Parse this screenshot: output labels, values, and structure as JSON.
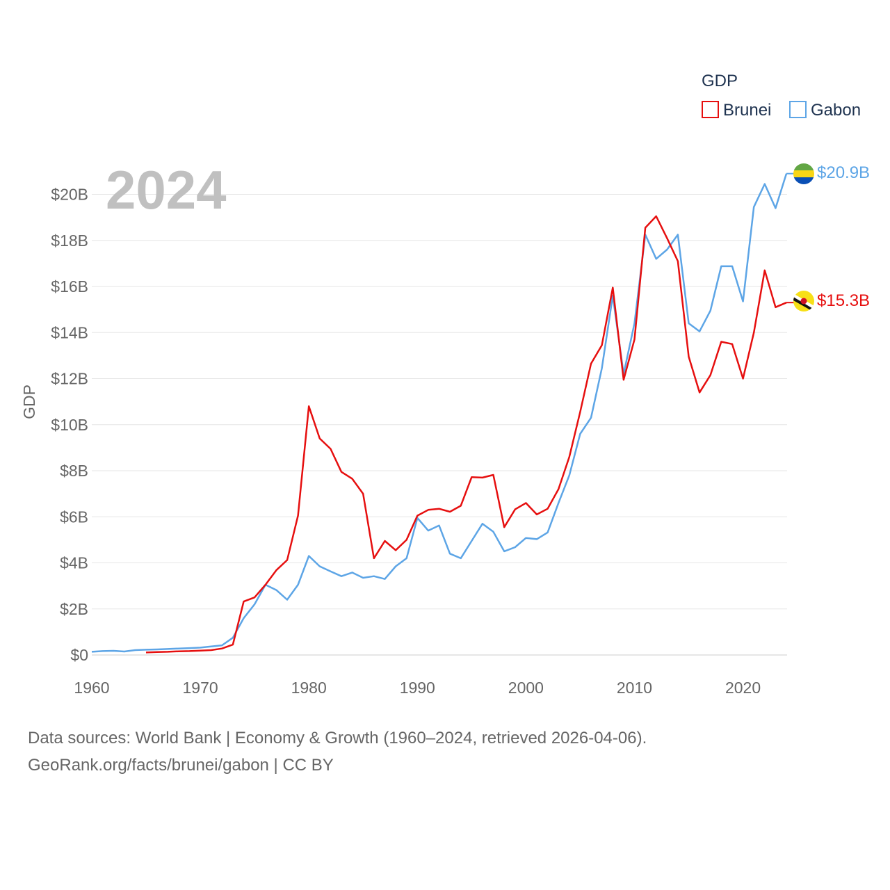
{
  "chart_data": {
    "type": "line",
    "ylabel": "GDP",
    "year_label": "2024",
    "legend_title": "GDP",
    "ylim": [
      0,
      21000000000
    ],
    "xlim": [
      1960,
      2024
    ],
    "y_ticks": [
      {
        "value": 0,
        "label": "$0"
      },
      {
        "value": 2000000000,
        "label": "$2B"
      },
      {
        "value": 4000000000,
        "label": "$4B"
      },
      {
        "value": 6000000000,
        "label": "$6B"
      },
      {
        "value": 8000000000,
        "label": "$8B"
      },
      {
        "value": 10000000000,
        "label": "$10B"
      },
      {
        "value": 12000000000,
        "label": "$12B"
      },
      {
        "value": 14000000000,
        "label": "$14B"
      },
      {
        "value": 16000000000,
        "label": "$16B"
      },
      {
        "value": 18000000000,
        "label": "$18B"
      },
      {
        "value": 20000000000,
        "label": "$20B"
      }
    ],
    "x_ticks": [
      1960,
      1970,
      1980,
      1990,
      2000,
      2010,
      2020
    ],
    "series": [
      {
        "name": "Brunei",
        "color": "#e60f0f",
        "end_label": "$15.3B",
        "flag": "brunei-flag-icon",
        "x": [
          1965,
          1966,
          1967,
          1968,
          1969,
          1970,
          1971,
          1972,
          1973,
          1974,
          1975,
          1976,
          1977,
          1978,
          1979,
          1980,
          1981,
          1982,
          1983,
          1984,
          1985,
          1986,
          1987,
          1988,
          1989,
          1990,
          1991,
          1992,
          1993,
          1994,
          1995,
          1996,
          1997,
          1998,
          1999,
          2000,
          2001,
          2002,
          2003,
          2004,
          2005,
          2006,
          2007,
          2008,
          2009,
          2010,
          2011,
          2012,
          2013,
          2014,
          2015,
          2016,
          2017,
          2018,
          2019,
          2020,
          2021,
          2022,
          2023,
          2024
        ],
        "values": [
          110000000.0,
          130000000.0,
          140000000.0,
          160000000.0,
          170000000.0,
          190000000.0,
          210000000.0,
          280000000.0,
          450000000.0,
          2320000000.0,
          2500000000.0,
          3050000000.0,
          3680000000.0,
          4120000000.0,
          6050000000.0,
          10800000000.0,
          9400000000.0,
          8950000000.0,
          7950000000.0,
          7650000000.0,
          7000000000.0,
          4200000000.0,
          4950000000.0,
          4550000000.0,
          5000000000.0,
          6050000000.0,
          6300000000.0,
          6350000000.0,
          6220000000.0,
          6480000000.0,
          7720000000.0,
          7700000000.0,
          7820000000.0,
          5550000000.0,
          6320000000.0,
          6600000000.0,
          6100000000.0,
          6350000000.0,
          7200000000.0,
          8600000000.0,
          10550000000.0,
          12650000000.0,
          13450000000.0,
          15950000000.0,
          11950000000.0,
          13700000000.0,
          18550000000.0,
          19050000000.0,
          18100000000.0,
          17100000000.0,
          12950000000.0,
          11400000000.0,
          12150000000.0,
          13600000000.0,
          13500000000.0,
          12000000000.0,
          14000000000.0,
          16700000000.0,
          15100000000.0,
          15300000000.0
        ]
      },
      {
        "name": "Gabon",
        "color": "#5da5e6",
        "end_label": "$20.9B",
        "flag": "gabon-flag-icon",
        "x": [
          1960,
          1961,
          1962,
          1963,
          1964,
          1965,
          1966,
          1967,
          1968,
          1969,
          1970,
          1971,
          1972,
          1973,
          1974,
          1975,
          1976,
          1977,
          1978,
          1979,
          1980,
          1981,
          1982,
          1983,
          1984,
          1985,
          1986,
          1987,
          1988,
          1989,
          1990,
          1991,
          1992,
          1993,
          1994,
          1995,
          1996,
          1997,
          1998,
          1999,
          2000,
          2001,
          2002,
          2003,
          2004,
          2005,
          2006,
          2007,
          2008,
          2009,
          2010,
          2011,
          2012,
          2013,
          2014,
          2015,
          2016,
          2017,
          2018,
          2019,
          2020,
          2021,
          2022,
          2023,
          2024
        ],
        "values": [
          140000000.0,
          170000000.0,
          180000000.0,
          150000000.0,
          210000000.0,
          230000000.0,
          240000000.0,
          260000000.0,
          280000000.0,
          300000000.0,
          320000000.0,
          370000000.0,
          420000000.0,
          750000000.0,
          1600000000.0,
          2200000000.0,
          3050000000.0,
          2820000000.0,
          2400000000.0,
          3050000000.0,
          4300000000.0,
          3850000000.0,
          3630000000.0,
          3420000000.0,
          3580000000.0,
          3350000000.0,
          3420000000.0,
          3300000000.0,
          3850000000.0,
          4200000000.0,
          5950000000.0,
          5400000000.0,
          5620000000.0,
          4400000000.0,
          4200000000.0,
          4950000000.0,
          5700000000.0,
          5350000000.0,
          4500000000.0,
          4680000000.0,
          5080000000.0,
          5030000000.0,
          5320000000.0,
          6600000000.0,
          7800000000.0,
          9600000000.0,
          10300000000.0,
          12450000000.0,
          15600000000.0,
          12200000000.0,
          14400000000.0,
          18250000000.0,
          17200000000.0,
          17600000000.0,
          18250000000.0,
          14400000000.0,
          14050000000.0,
          14950000000.0,
          16880000000.0,
          16880000000.0,
          15350000000.0,
          19450000000.0,
          20450000000.0,
          19400000000.0,
          20900000000.0
        ]
      }
    ]
  },
  "source_line1": "Data sources: World Bank | Economy & Growth (1960–2024, retrieved 2026-04-06).",
  "source_line2": "GeoRank.org/facts/brunei/gabon | CC BY"
}
